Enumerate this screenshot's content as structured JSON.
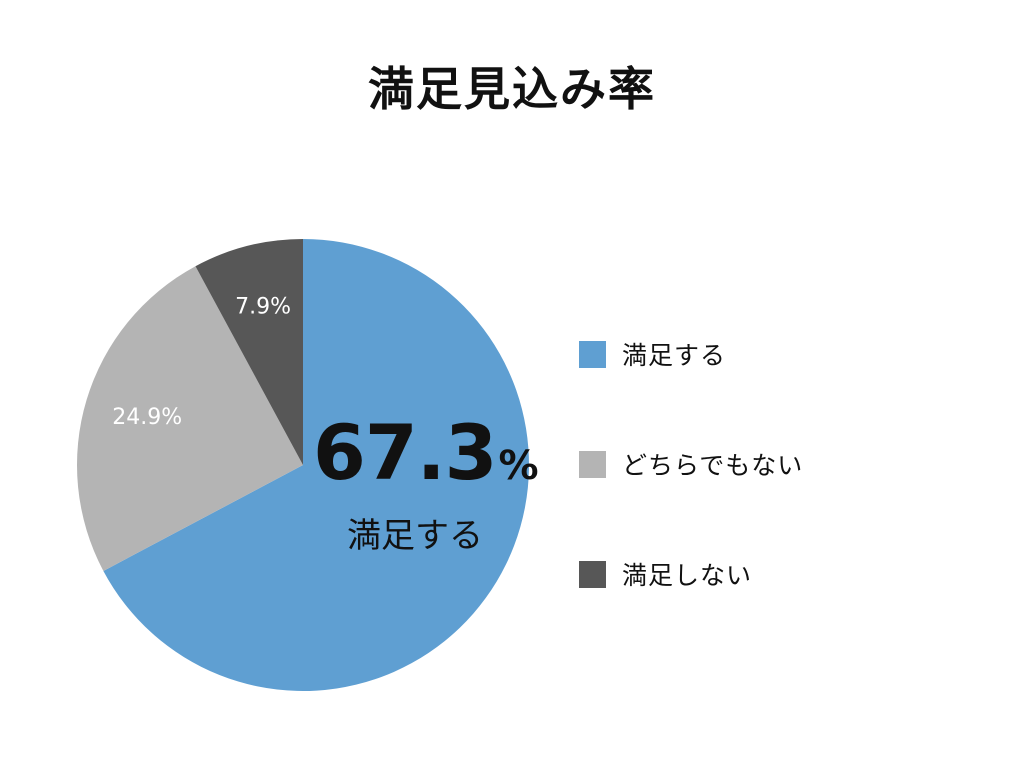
{
  "chart_data": {
    "type": "pie",
    "title": "満足見込み率",
    "categories": [
      "満足する",
      "どちらでもない",
      "満足しない"
    ],
    "values": [
      67.3,
      24.9,
      7.9
    ],
    "value_labels": [
      "",
      "24.9%",
      "7.9%"
    ],
    "colors": [
      "#5f9fd2",
      "#b4b4b4",
      "#575757"
    ],
    "start_angle": "12 o'clock",
    "direction": "clockwise",
    "legend_position": "right",
    "highlight": {
      "value": "67.3",
      "unit": "%",
      "label": "満足する"
    }
  }
}
